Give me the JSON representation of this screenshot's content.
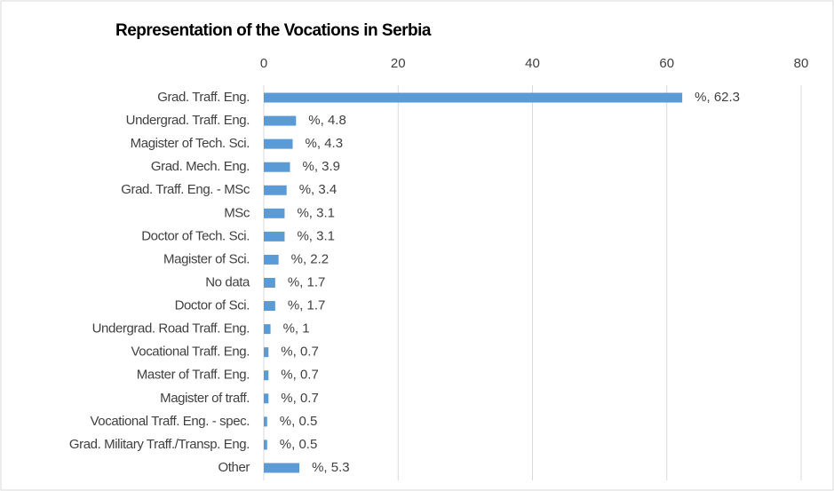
{
  "chart_data": {
    "type": "barh",
    "title": "Representation of the Vocations in Serbia",
    "categories": [
      "Grad. Traff. Eng.",
      "Undergrad. Traff. Eng.",
      "Magister of Tech. Sci.",
      "Grad. Mech. Eng.",
      "Grad. Traff. Eng. - MSc",
      "MSc",
      "Doctor of Tech. Sci.",
      "Magister of Sci.",
      "No data",
      "Doctor of Sci.",
      "Undergrad. Road Traff. Eng.",
      "Vocational Traff. Eng.",
      "Master of Traff. Eng.",
      "Magister of traff.",
      "Vocational Traff. Eng. - spec.",
      "Grad. Military Traff./Transp. Eng.",
      "Other"
    ],
    "values": [
      62.3,
      4.8,
      4.3,
      3.9,
      3.4,
      3.1,
      3.1,
      2.2,
      1.7,
      1.7,
      1,
      0.7,
      0.7,
      0.7,
      0.5,
      0.5,
      5.3
    ],
    "value_labels": [
      "%, 62.3",
      "%, 4.8",
      "%, 4.3",
      "%, 3.9",
      "%, 3.4",
      "%, 3.1",
      "%, 3.1",
      "%, 2.2",
      "%, 1.7",
      "%, 1.7",
      "%, 1",
      "%, 0.7",
      "%, 0.7",
      "%, 0.7",
      "%, 0.5",
      "%, 0.5",
      "%, 5.3"
    ],
    "color": "#5b9bd5",
    "xlim": [
      0,
      80
    ],
    "xticks": [
      0,
      20,
      40,
      60,
      80
    ],
    "grid": true
  }
}
